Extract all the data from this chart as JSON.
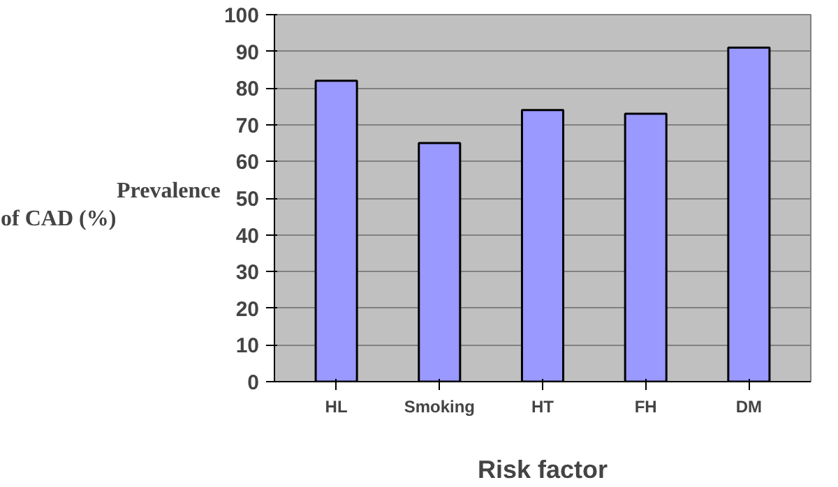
{
  "chart_data": {
    "type": "bar",
    "xlabel": "Risk factor",
    "ylabel": "Prevalence of CAD (%)",
    "categories": [
      "HL",
      "Smoking",
      "HT",
      "FH",
      "DM"
    ],
    "values": [
      82,
      65,
      74,
      73,
      91
    ],
    "color": "#9999ff",
    "ylim": [
      0,
      100
    ],
    "yticks": [
      0,
      10,
      20,
      30,
      40,
      50,
      60,
      70,
      80,
      90,
      100
    ],
    "grid": "y"
  }
}
